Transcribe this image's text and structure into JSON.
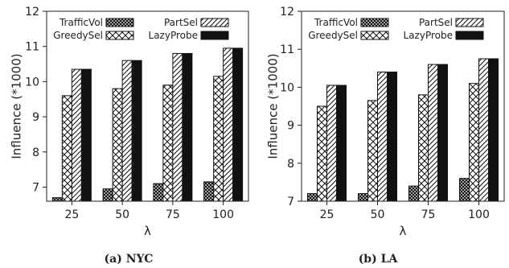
{
  "chart_data": [
    {
      "type": "bar",
      "caption": "(a) NYC",
      "xlabel": "λ",
      "ylabel": "Influence (*1000)",
      "categories": [
        "25",
        "50",
        "75",
        "100"
      ],
      "ylim": [
        6.6,
        12
      ],
      "yticks": [
        7,
        8,
        9,
        10,
        11,
        12
      ],
      "legend": "top, two columns",
      "series": [
        {
          "name": "TrafficVol",
          "values": [
            6.7,
            6.95,
            7.1,
            7.15
          ]
        },
        {
          "name": "GreedySel",
          "values": [
            9.6,
            9.8,
            9.9,
            10.15
          ]
        },
        {
          "name": "PartSel",
          "values": [
            10.35,
            10.6,
            10.8,
            10.95
          ]
        },
        {
          "name": "LazyProbe",
          "values": [
            10.35,
            10.6,
            10.8,
            10.95
          ]
        }
      ]
    },
    {
      "type": "bar",
      "caption": "(b) LA",
      "xlabel": "λ",
      "ylabel": "Influence (*1000)",
      "categories": [
        "25",
        "50",
        "75",
        "100"
      ],
      "ylim": [
        7,
        12
      ],
      "yticks": [
        7,
        8,
        9,
        10,
        11,
        12
      ],
      "legend": "top, two columns",
      "series": [
        {
          "name": "TrafficVol",
          "values": [
            7.2,
            7.2,
            7.4,
            7.6
          ]
        },
        {
          "name": "GreedySel",
          "values": [
            9.5,
            9.65,
            9.8,
            10.1
          ]
        },
        {
          "name": "PartSel",
          "values": [
            10.05,
            10.4,
            10.6,
            10.75
          ]
        },
        {
          "name": "LazyProbe",
          "values": [
            10.05,
            10.4,
            10.6,
            10.75
          ]
        }
      ]
    }
  ],
  "colors": {
    "axis": "#222222",
    "bar_fill": "#ffffff",
    "solid": "#111111"
  }
}
